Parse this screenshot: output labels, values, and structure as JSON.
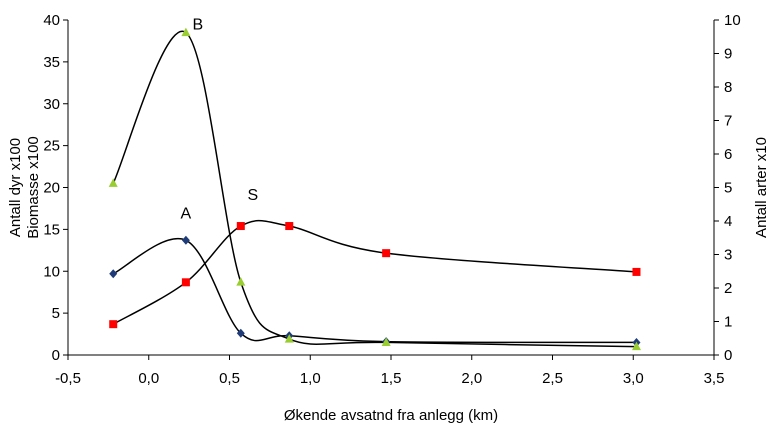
{
  "chart_data": {
    "type": "line",
    "title": "",
    "xlabel": "Økende avsatnd fra anlegg (km)",
    "ylabel_left_line1": "Antall dyr x100",
    "ylabel_left_line2": "Biomasse x100",
    "ylabel_right": "Antall arter x10",
    "xlim": [
      -0.5,
      3.5
    ],
    "ylim_left": [
      0,
      40
    ],
    "ylim_right": [
      0,
      10
    ],
    "x_ticks": [
      "-0,5",
      "0,0",
      "0,5",
      "1,0",
      "1,5",
      "2,0",
      "2,5",
      "3,0",
      "3,5"
    ],
    "y_left_ticks": [
      "0",
      "5",
      "10",
      "15",
      "20",
      "25",
      "30",
      "35",
      "40"
    ],
    "y_right_ticks": [
      "0",
      "1",
      "2",
      "3",
      "4",
      "5",
      "6",
      "7",
      "8",
      "9",
      "10"
    ],
    "grid": false,
    "legend": "none",
    "series": [
      {
        "label": "A",
        "axis": "left",
        "marker": "diamond",
        "color": "#1f3c78",
        "x": [
          -0.22,
          0.23,
          0.57,
          0.87,
          1.47,
          3.02
        ],
        "y": [
          9.7,
          13.7,
          2.6,
          2.3,
          1.6,
          1.5
        ]
      },
      {
        "label": "B",
        "axis": "left",
        "marker": "triangle",
        "color": "#9acd32",
        "x": [
          -0.22,
          0.23,
          0.57,
          0.87,
          1.47,
          3.02
        ],
        "y": [
          20.5,
          38.5,
          8.7,
          1.9,
          1.5,
          1.0
        ]
      },
      {
        "label": "S",
        "axis": "right",
        "marker": "square",
        "color": "#ff0000",
        "x": [
          -0.22,
          0.23,
          0.57,
          0.87,
          1.47,
          3.02
        ],
        "y": [
          0.92,
          2.17,
          3.85,
          3.85,
          3.04,
          2.48
        ]
      }
    ],
    "annotations": [
      {
        "text": "B",
        "series": 1,
        "point": 1
      },
      {
        "text": "A",
        "series": 0,
        "point": 1
      },
      {
        "text": "S",
        "series": 2,
        "point": 2
      }
    ]
  }
}
